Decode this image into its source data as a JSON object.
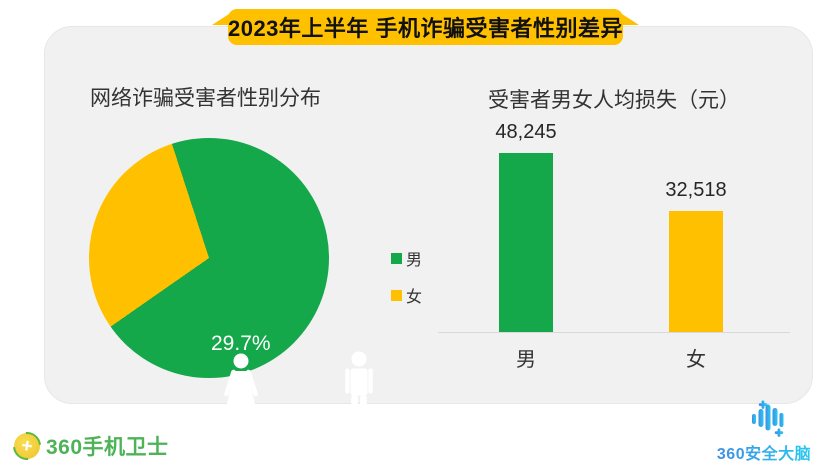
{
  "header": {
    "title": "2023年上半年 手机诈骗受害者性别差异",
    "banner_color": "#FFC000"
  },
  "colors": {
    "male_green": "#14A84B",
    "female_yellow": "#FFC000",
    "axis_line": "#D9D9D9",
    "left_logo_green": "#4DB356",
    "right_logo_blue": "#2FA8E1"
  },
  "legend": {
    "position": "right-of-pie"
  },
  "footer": {
    "left_logo_text": "360手机卫士",
    "right_logo_text": "360安全大脑"
  },
  "chart_data": [
    {
      "type": "pie",
      "title": "网络诈骗受害者性别分布",
      "labels": [
        "男",
        "女"
      ],
      "values": [
        70.3,
        29.7
      ],
      "value_labels": [
        "70.3%",
        "29.7%"
      ],
      "unit": "%",
      "colors": [
        "#14A84B",
        "#FFC000"
      ],
      "start_angle_deg": -18,
      "legend_position": "right",
      "annotations": [
        "male-pictogram-in-green-slice",
        "female-pictogram-in-yellow-slice"
      ]
    },
    {
      "type": "bar",
      "title": "受害者男女人均损失（元）",
      "categories": [
        "男",
        "女"
      ],
      "values": [
        48245,
        32518
      ],
      "value_labels": [
        "48,245",
        "32,518"
      ],
      "colors": [
        "#14A84B",
        "#FFC000"
      ],
      "ylim": [
        0,
        50000
      ],
      "grid": false,
      "ylabel": "元"
    }
  ]
}
